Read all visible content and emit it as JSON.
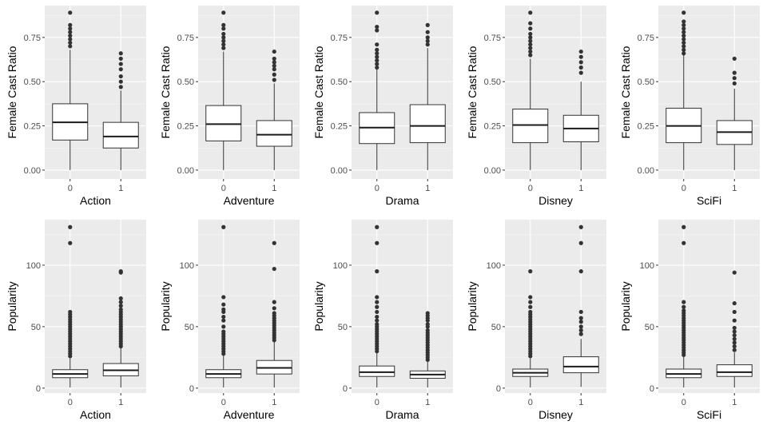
{
  "chart_data": [
    {
      "type": "box",
      "ylabel": "Female Cast Ratio",
      "xlabel": "Action",
      "categories": [
        "0",
        "1"
      ],
      "ylim": [
        -0.05,
        0.93
      ],
      "yticks": [
        0.0,
        0.25,
        0.5,
        0.75
      ],
      "ytick_labels": [
        "0.00",
        "0.25",
        "0.50",
        "0.75"
      ],
      "boxes": [
        {
          "q1": 0.17,
          "median": 0.27,
          "q3": 0.375,
          "whisker_low": 0.0,
          "whisker_high": 0.68,
          "outliers": [
            0.7,
            0.72,
            0.74,
            0.76,
            0.78,
            0.8,
            0.82,
            0.89
          ]
        },
        {
          "q1": 0.125,
          "median": 0.19,
          "q3": 0.27,
          "whisker_low": 0.0,
          "whisker_high": 0.45,
          "outliers": [
            0.47,
            0.5,
            0.53,
            0.57,
            0.6,
            0.63,
            0.66
          ]
        }
      ]
    },
    {
      "type": "box",
      "ylabel": "Female Cast Ratio",
      "xlabel": "Adventure",
      "categories": [
        "0",
        "1"
      ],
      "ylim": [
        -0.05,
        0.93
      ],
      "yticks": [
        0.0,
        0.25,
        0.5,
        0.75
      ],
      "ytick_labels": [
        "0.00",
        "0.25",
        "0.50",
        "0.75"
      ],
      "boxes": [
        {
          "q1": 0.165,
          "median": 0.26,
          "q3": 0.365,
          "whisker_low": 0.0,
          "whisker_high": 0.67,
          "outliers": [
            0.69,
            0.71,
            0.73,
            0.75,
            0.77,
            0.8,
            0.82,
            0.89
          ]
        },
        {
          "q1": 0.135,
          "median": 0.2,
          "q3": 0.28,
          "whisker_low": 0.0,
          "whisker_high": 0.49,
          "outliers": [
            0.51,
            0.54,
            0.57,
            0.59,
            0.61,
            0.63,
            0.67
          ]
        }
      ]
    },
    {
      "type": "box",
      "ylabel": "Female Cast Ratio",
      "xlabel": "Drama",
      "categories": [
        "0",
        "1"
      ],
      "ylim": [
        -0.05,
        0.93
      ],
      "yticks": [
        0.0,
        0.25,
        0.5,
        0.75
      ],
      "ytick_labels": [
        "0.00",
        "0.25",
        "0.50",
        "0.75"
      ],
      "boxes": [
        {
          "q1": 0.15,
          "median": 0.24,
          "q3": 0.325,
          "whisker_low": 0.0,
          "whisker_high": 0.57,
          "outliers": [
            0.58,
            0.6,
            0.62,
            0.64,
            0.66,
            0.68,
            0.71,
            0.79,
            0.81,
            0.89
          ]
        },
        {
          "q1": 0.155,
          "median": 0.25,
          "q3": 0.37,
          "whisker_low": 0.0,
          "whisker_high": 0.69,
          "outliers": [
            0.71,
            0.73,
            0.75,
            0.78,
            0.82
          ]
        }
      ]
    },
    {
      "type": "box",
      "ylabel": "Female Cast Ratio",
      "xlabel": "Disney",
      "categories": [
        "0",
        "1"
      ],
      "ylim": [
        -0.05,
        0.93
      ],
      "yticks": [
        0.0,
        0.25,
        0.5,
        0.75
      ],
      "ytick_labels": [
        "0.00",
        "0.25",
        "0.50",
        "0.75"
      ],
      "boxes": [
        {
          "q1": 0.155,
          "median": 0.255,
          "q3": 0.345,
          "whisker_low": 0.0,
          "whisker_high": 0.63,
          "outliers": [
            0.65,
            0.67,
            0.69,
            0.71,
            0.73,
            0.75,
            0.77,
            0.8,
            0.83,
            0.89
          ]
        },
        {
          "q1": 0.16,
          "median": 0.235,
          "q3": 0.31,
          "whisker_low": 0.0,
          "whisker_high": 0.5,
          "outliers": [
            0.55,
            0.58,
            0.61,
            0.64,
            0.67
          ]
        }
      ]
    },
    {
      "type": "box",
      "ylabel": "Female Cast Ratio",
      "xlabel": "SciFi",
      "categories": [
        "0",
        "1"
      ],
      "ylim": [
        -0.05,
        0.93
      ],
      "yticks": [
        0.0,
        0.25,
        0.5,
        0.75
      ],
      "ytick_labels": [
        "0.00",
        "0.25",
        "0.50",
        "0.75"
      ],
      "boxes": [
        {
          "q1": 0.155,
          "median": 0.25,
          "q3": 0.35,
          "whisker_low": 0.0,
          "whisker_high": 0.65,
          "outliers": [
            0.66,
            0.68,
            0.7,
            0.72,
            0.74,
            0.76,
            0.78,
            0.8,
            0.82,
            0.84,
            0.89
          ]
        },
        {
          "q1": 0.145,
          "median": 0.215,
          "q3": 0.28,
          "whisker_low": 0.0,
          "whisker_high": 0.46,
          "outliers": [
            0.49,
            0.52,
            0.55,
            0.63
          ]
        }
      ]
    },
    {
      "type": "box",
      "ylabel": "Popularity",
      "xlabel": "Action",
      "categories": [
        "0",
        "1"
      ],
      "ylim": [
        -4,
        137
      ],
      "yticks": [
        0,
        50,
        100
      ],
      "ytick_labels": [
        "0",
        "50",
        "100"
      ],
      "boxes": [
        {
          "q1": 8.5,
          "median": 11.5,
          "q3": 15.0,
          "whisker_low": 0.5,
          "whisker_high": 24.5,
          "outliers": [
            26,
            28,
            30,
            32,
            34,
            36,
            38,
            40,
            42,
            44,
            46,
            48,
            50,
            52,
            54,
            56,
            58,
            60,
            62,
            118,
            131
          ]
        },
        {
          "q1": 10.0,
          "median": 14.5,
          "q3": 20.0,
          "whisker_low": 0.5,
          "whisker_high": 33.0,
          "outliers": [
            34,
            36,
            38,
            40,
            42,
            44,
            46,
            48,
            50,
            52,
            54,
            56,
            58,
            60,
            62,
            64,
            67,
            70,
            73,
            94,
            95
          ]
        }
      ]
    },
    {
      "type": "box",
      "ylabel": "Popularity",
      "xlabel": "Adventure",
      "categories": [
        "0",
        "1"
      ],
      "ylim": [
        -4,
        137
      ],
      "yticks": [
        0,
        50,
        100
      ],
      "ytick_labels": [
        "0",
        "50",
        "100"
      ],
      "boxes": [
        {
          "q1": 8.5,
          "median": 11.5,
          "q3": 15.0,
          "whisker_low": 0.5,
          "whisker_high": 26.5,
          "outliers": [
            28,
            30,
            32,
            34,
            36,
            38,
            40,
            42,
            44,
            46,
            50,
            55,
            58,
            62,
            64,
            68,
            74,
            131
          ]
        },
        {
          "q1": 11.5,
          "median": 16.5,
          "q3": 22.5,
          "whisker_low": 0.5,
          "whisker_high": 38.0,
          "outliers": [
            39,
            41,
            43,
            45,
            47,
            49,
            51,
            53,
            55,
            57,
            59,
            61,
            65,
            70,
            97,
            118
          ]
        }
      ]
    },
    {
      "type": "box",
      "ylabel": "Popularity",
      "xlabel": "Drama",
      "categories": [
        "0",
        "1"
      ],
      "ylim": [
        -4,
        137
      ],
      "yticks": [
        0,
        50,
        100
      ],
      "ytick_labels": [
        "0",
        "50",
        "100"
      ],
      "boxes": [
        {
          "q1": 9.5,
          "median": 13.0,
          "q3": 18.0,
          "whisker_low": 0.5,
          "whisker_high": 28.5,
          "outliers": [
            30,
            32,
            34,
            36,
            38,
            40,
            42,
            44,
            46,
            48,
            50,
            52,
            55,
            58,
            62,
            66,
            70,
            74,
            95,
            118,
            131
          ]
        },
        {
          "q1": 8.0,
          "median": 11.0,
          "q3": 14.0,
          "whisker_low": 0.5,
          "whisker_high": 22.0,
          "outliers": [
            23,
            25,
            27,
            29,
            31,
            33,
            35,
            37,
            39,
            41,
            43,
            45,
            47,
            50,
            52,
            55,
            57,
            59,
            61
          ]
        }
      ]
    },
    {
      "type": "box",
      "ylabel": "Popularity",
      "xlabel": "Disney",
      "categories": [
        "0",
        "1"
      ],
      "ylim": [
        -4,
        137
      ],
      "yticks": [
        0,
        50,
        100
      ],
      "ytick_labels": [
        "0",
        "50",
        "100"
      ],
      "boxes": [
        {
          "q1": 9.5,
          "median": 12.5,
          "q3": 15.5,
          "whisker_low": 0.5,
          "whisker_high": 24.5,
          "outliers": [
            26,
            28,
            30,
            32,
            34,
            36,
            38,
            40,
            42,
            44,
            46,
            48,
            50,
            52,
            54,
            56,
            58,
            60,
            62,
            66,
            70,
            74,
            95
          ]
        },
        {
          "q1": 12.5,
          "median": 17.5,
          "q3": 25.5,
          "whisker_low": 1.0,
          "whisker_high": 40.0,
          "outliers": [
            44,
            47,
            50,
            54,
            57,
            62,
            95,
            118,
            131
          ]
        }
      ]
    },
    {
      "type": "box",
      "ylabel": "Popularity",
      "xlabel": "SciFi",
      "categories": [
        "0",
        "1"
      ],
      "ylim": [
        -4,
        137
      ],
      "yticks": [
        0,
        50,
        100
      ],
      "ytick_labels": [
        "0",
        "50",
        "100"
      ],
      "boxes": [
        {
          "q1": 8.5,
          "median": 11.5,
          "q3": 15.5,
          "whisker_low": 0.5,
          "whisker_high": 25.5,
          "outliers": [
            27,
            29,
            31,
            33,
            35,
            37,
            39,
            41,
            43,
            45,
            47,
            49,
            51,
            53,
            55,
            57,
            59,
            61,
            63,
            66,
            70,
            118,
            131
          ]
        },
        {
          "q1": 9.5,
          "median": 13.0,
          "q3": 19.0,
          "whisker_low": 0.5,
          "whisker_high": 29.0,
          "outliers": [
            31,
            34,
            37,
            40,
            43,
            46,
            49,
            55,
            62,
            69,
            94
          ]
        }
      ]
    }
  ]
}
